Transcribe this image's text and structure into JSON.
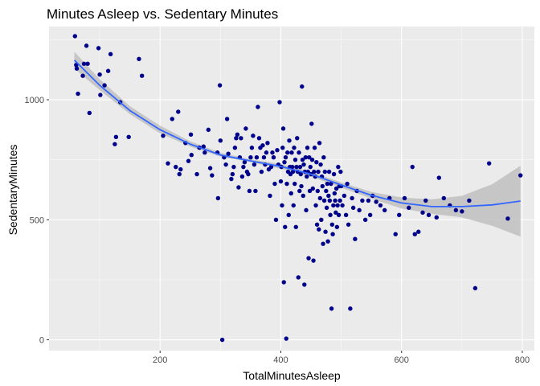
{
  "chart_data": {
    "type": "scatter",
    "title": "Minutes Asleep vs. Sedentary Minutes",
    "xlabel": "TotalMinutesAsleep",
    "ylabel": "SedentaryMinutes",
    "xlim": [
      16,
      820
    ],
    "ylim": [
      -45,
      1305
    ],
    "x_ticks": [
      200,
      400,
      600,
      800
    ],
    "y_ticks": [
      0,
      500,
      1000
    ],
    "x_minor_ticks": [
      100,
      300,
      500,
      700
    ],
    "y_minor_ticks": [
      250,
      750,
      1250
    ],
    "grid": true,
    "colors": {
      "panel": "#ebebeb",
      "grid_major": "#ffffff",
      "points": "#00008b",
      "smooth_line": "#3366ff",
      "confidence_band": "#bfbfbf"
    },
    "smooth": {
      "x": [
        58,
        100,
        150,
        200,
        250,
        300,
        350,
        400,
        450,
        500,
        550,
        600,
        650,
        700,
        750,
        797
      ],
      "y": [
        1165,
        1060,
        955,
        875,
        815,
        770,
        745,
        722,
        690,
        645,
        602,
        570,
        555,
        555,
        562,
        578
      ],
      "lower": [
        1130,
        1040,
        940,
        860,
        805,
        763,
        740,
        712,
        680,
        634,
        588,
        547,
        525,
        510,
        475,
        430
      ],
      "upper": [
        1200,
        1085,
        973,
        892,
        827,
        779,
        752,
        732,
        700,
        656,
        616,
        593,
        585,
        600,
        648,
        725
      ]
    },
    "points": [
      [
        59,
        1265
      ],
      [
        61,
        1145
      ],
      [
        62,
        1130
      ],
      [
        64,
        1025
      ],
      [
        72,
        1100
      ],
      [
        74,
        1150
      ],
      [
        78,
        1225
      ],
      [
        80,
        1150
      ],
      [
        83,
        945
      ],
      [
        98,
        1215
      ],
      [
        100,
        1105
      ],
      [
        101,
        1020
      ],
      [
        108,
        1060
      ],
      [
        114,
        1120
      ],
      [
        118,
        1190
      ],
      [
        125,
        815
      ],
      [
        127,
        845
      ],
      [
        134,
        990
      ],
      [
        148,
        845
      ],
      [
        165,
        1170
      ],
      [
        170,
        1100
      ],
      [
        205,
        850
      ],
      [
        213,
        735
      ],
      [
        220,
        920
      ],
      [
        226,
        720
      ],
      [
        230,
        950
      ],
      [
        232,
        690
      ],
      [
        234,
        710
      ],
      [
        242,
        820
      ],
      [
        247,
        745
      ],
      [
        251,
        855
      ],
      [
        252,
        770
      ],
      [
        261,
        690
      ],
      [
        265,
        800
      ],
      [
        272,
        805
      ],
      [
        274,
        780
      ],
      [
        280,
        875
      ],
      [
        283,
        715
      ],
      [
        286,
        685
      ],
      [
        295,
        780
      ],
      [
        296,
        590
      ],
      [
        299,
        1060
      ],
      [
        300,
        830
      ],
      [
        303,
        0
      ],
      [
        306,
        760
      ],
      [
        309,
        730
      ],
      [
        311,
        920
      ],
      [
        313,
        775
      ],
      [
        318,
        670
      ],
      [
        320,
        690
      ],
      [
        322,
        720
      ],
      [
        324,
        800
      ],
      [
        326,
        840
      ],
      [
        328,
        855
      ],
      [
        330,
        635
      ],
      [
        332,
        760
      ],
      [
        334,
        840
      ],
      [
        336,
        680
      ],
      [
        338,
        720
      ],
      [
        340,
        740
      ],
      [
        342,
        880
      ],
      [
        344,
        700
      ],
      [
        346,
        690
      ],
      [
        348,
        620
      ],
      [
        350,
        760
      ],
      [
        352,
        800
      ],
      [
        354,
        850
      ],
      [
        356,
        730
      ],
      [
        358,
        620
      ],
      [
        360,
        760
      ],
      [
        362,
        970
      ],
      [
        364,
        840
      ],
      [
        366,
        800
      ],
      [
        368,
        700
      ],
      [
        370,
        810
      ],
      [
        372,
        760
      ],
      [
        374,
        730
      ],
      [
        376,
        780
      ],
      [
        378,
        820
      ],
      [
        380,
        710
      ],
      [
        382,
        600
      ],
      [
        384,
        720
      ],
      [
        386,
        780
      ],
      [
        388,
        760
      ],
      [
        390,
        650
      ],
      [
        392,
        500
      ],
      [
        394,
        790
      ],
      [
        396,
        730
      ],
      [
        398,
        990
      ],
      [
        400,
        660
      ],
      [
        401,
        720
      ],
      [
        402,
        560
      ],
      [
        403,
        800
      ],
      [
        404,
        880
      ],
      [
        405,
        240
      ],
      [
        406,
        740
      ],
      [
        407,
        470
      ],
      [
        408,
        760
      ],
      [
        409,
        5
      ],
      [
        410,
        650
      ],
      [
        411,
        780
      ],
      [
        412,
        700
      ],
      [
        413,
        520
      ],
      [
        414,
        830
      ],
      [
        415,
        720
      ],
      [
        416,
        690
      ],
      [
        417,
        610
      ],
      [
        418,
        780
      ],
      [
        419,
        720
      ],
      [
        420,
        700
      ],
      [
        421,
        560
      ],
      [
        422,
        800
      ],
      [
        423,
        650
      ],
      [
        424,
        750
      ],
      [
        425,
        470
      ],
      [
        426,
        720
      ],
      [
        427,
        840
      ],
      [
        428,
        700
      ],
      [
        429,
        260
      ],
      [
        430,
        780
      ],
      [
        431,
        620
      ],
      [
        432,
        720
      ],
      [
        433,
        690
      ],
      [
        434,
        640
      ],
      [
        435,
        1055
      ],
      [
        436,
        750
      ],
      [
        437,
        600
      ],
      [
        438,
        730
      ],
      [
        439,
        230
      ],
      [
        440,
        700
      ],
      [
        441,
        760
      ],
      [
        442,
        540
      ],
      [
        443,
        680
      ],
      [
        444,
        800
      ],
      [
        445,
        700
      ],
      [
        446,
        340
      ],
      [
        447,
        760
      ],
      [
        448,
        620
      ],
      [
        449,
        720
      ],
      [
        450,
        690
      ],
      [
        451,
        900
      ],
      [
        452,
        750
      ],
      [
        453,
        630
      ],
      [
        454,
        330
      ],
      [
        455,
        700
      ],
      [
        456,
        800
      ],
      [
        457,
        680
      ],
      [
        458,
        560
      ],
      [
        459,
        740
      ],
      [
        460,
        480
      ],
      [
        461,
        620
      ],
      [
        462,
        700
      ],
      [
        463,
        460
      ],
      [
        464,
        820
      ],
      [
        465,
        590
      ],
      [
        466,
        730
      ],
      [
        467,
        500
      ],
      [
        468,
        680
      ],
      [
        469,
        640
      ],
      [
        470,
        400
      ],
      [
        471,
        760
      ],
      [
        472,
        580
      ],
      [
        473,
        700
      ],
      [
        474,
        450
      ],
      [
        475,
        620
      ],
      [
        476,
        550
      ],
      [
        477,
        650
      ],
      [
        478,
        410
      ],
      [
        479,
        600
      ],
      [
        480,
        700
      ],
      [
        481,
        580
      ],
      [
        482,
        520
      ],
      [
        483,
        650
      ],
      [
        484,
        130
      ],
      [
        485,
        480
      ],
      [
        486,
        440
      ],
      [
        487,
        560
      ],
      [
        488,
        690
      ],
      [
        489,
        610
      ],
      [
        490,
        580
      ],
      [
        491,
        530
      ],
      [
        492,
        630
      ],
      [
        493,
        470
      ],
      [
        494,
        560
      ],
      [
        495,
        720
      ],
      [
        496,
        520
      ],
      [
        497,
        640
      ],
      [
        498,
        580
      ],
      [
        499,
        700
      ],
      [
        500,
        640
      ],
      [
        502,
        560
      ],
      [
        505,
        600
      ],
      [
        508,
        520
      ],
      [
        510,
        650
      ],
      [
        512,
        480
      ],
      [
        515,
        130
      ],
      [
        518,
        590
      ],
      [
        520,
        550
      ],
      [
        523,
        420
      ],
      [
        526,
        620
      ],
      [
        530,
        540
      ],
      [
        535,
        580
      ],
      [
        540,
        500
      ],
      [
        545,
        580
      ],
      [
        548,
        520
      ],
      [
        552,
        600
      ],
      [
        558,
        575
      ],
      [
        565,
        560
      ],
      [
        572,
        540
      ],
      [
        580,
        590
      ],
      [
        590,
        440
      ],
      [
        596,
        520
      ],
      [
        605,
        590
      ],
      [
        612,
        550
      ],
      [
        618,
        720
      ],
      [
        622,
        440
      ],
      [
        628,
        450
      ],
      [
        635,
        530
      ],
      [
        640,
        580
      ],
      [
        645,
        520
      ],
      [
        658,
        510
      ],
      [
        662,
        675
      ],
      [
        670,
        590
      ],
      [
        680,
        560
      ],
      [
        690,
        540
      ],
      [
        700,
        535
      ],
      [
        712,
        580
      ],
      [
        722,
        215
      ],
      [
        745,
        735
      ],
      [
        776,
        505
      ],
      [
        797,
        685
      ]
    ]
  }
}
